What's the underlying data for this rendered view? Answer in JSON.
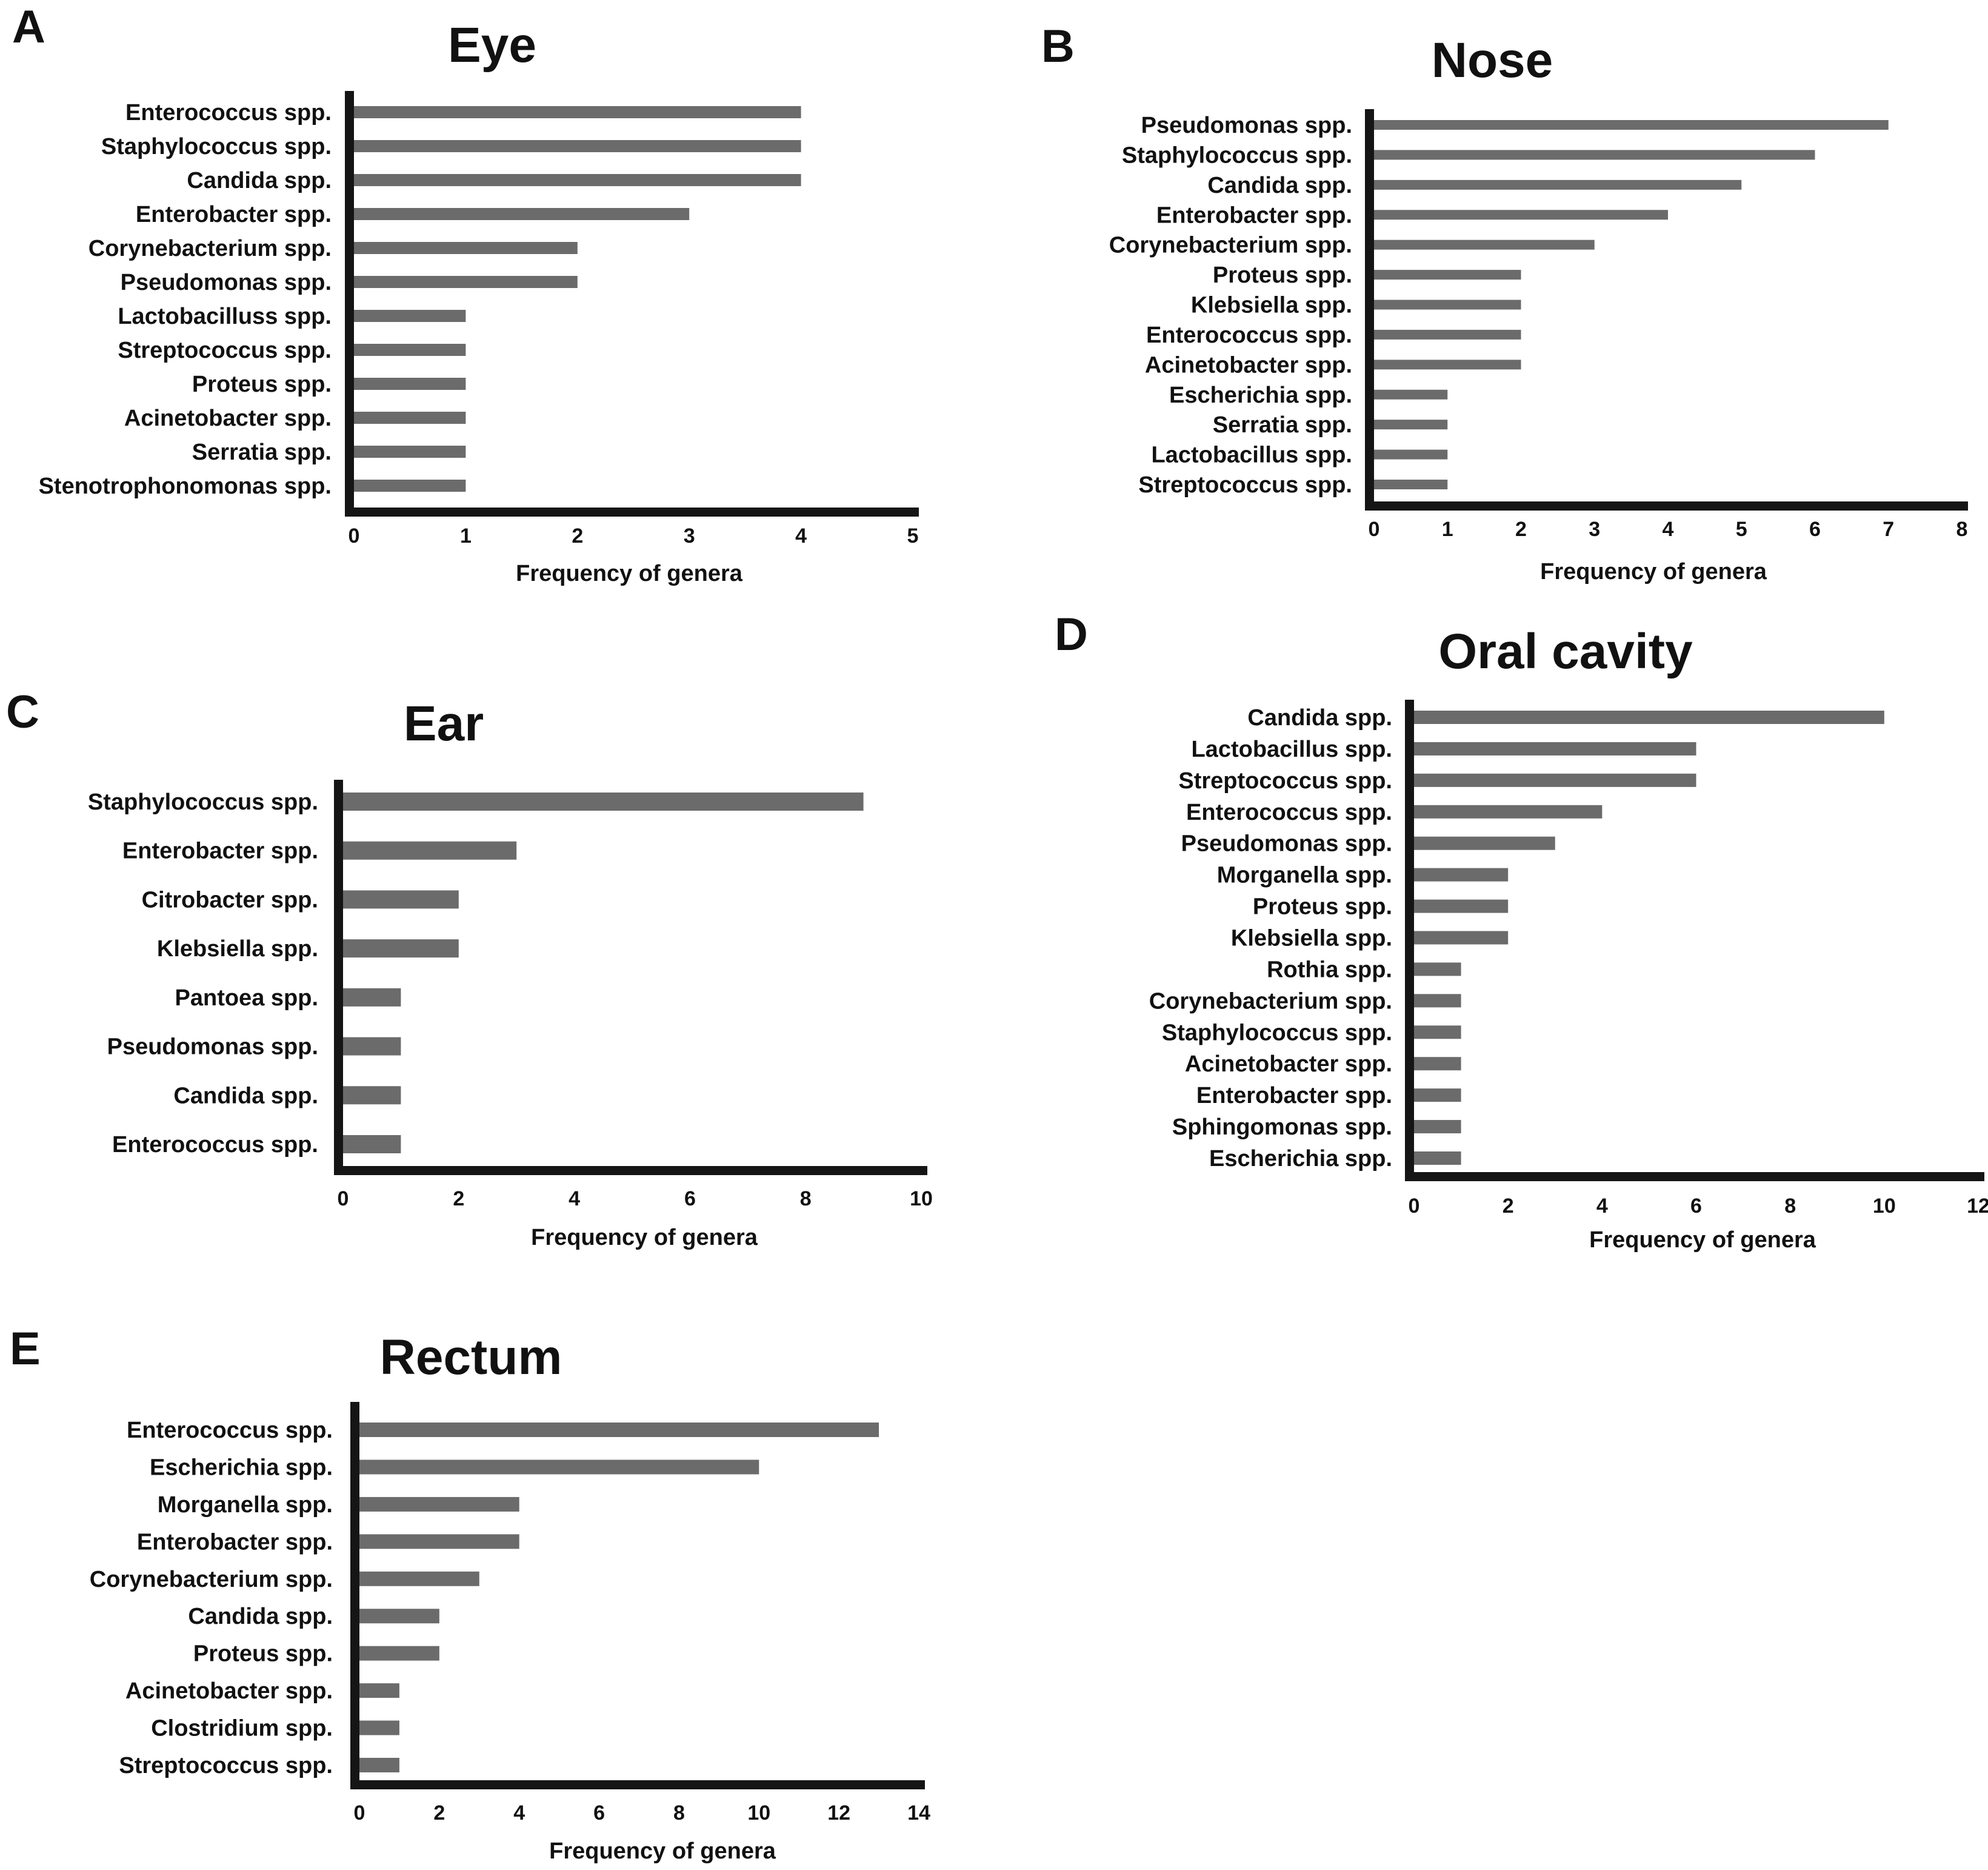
{
  "colors": {
    "bar": "#6b6b6b",
    "axis": "#151515",
    "text": "#111111"
  },
  "chart_data": [
    {
      "panel": "A",
      "type": "bar",
      "orientation": "horizontal",
      "title": "Eye",
      "xlabel": "Frequency of genera",
      "xlim": [
        0,
        5
      ],
      "xticks": [
        0,
        1,
        2,
        3,
        4,
        5
      ],
      "categories": [
        "Enterococcus spp.",
        "Staphylococcus spp.",
        "Candida spp.",
        "Enterobacter spp.",
        "Corynebacterium spp.",
        "Pseudomonas spp.",
        "Lactobacilluss spp.",
        "Streptococcus spp.",
        "Proteus spp.",
        "Acinetobacter spp.",
        "Serratia spp.",
        "Stenotrophonomonas spp."
      ],
      "values": [
        4,
        4,
        4,
        3,
        2,
        2,
        1,
        1,
        1,
        1,
        1,
        1
      ]
    },
    {
      "panel": "B",
      "type": "bar",
      "orientation": "horizontal",
      "title": "Nose",
      "xlabel": "Frequency of genera",
      "xlim": [
        0,
        8
      ],
      "xticks": [
        0,
        1,
        2,
        3,
        4,
        5,
        6,
        7,
        8
      ],
      "categories": [
        "Pseudomonas spp.",
        "Staphylococcus spp.",
        "Candida spp.",
        "Enterobacter spp.",
        "Corynebacterium spp.",
        "Proteus spp.",
        "Klebsiella spp.",
        "Enterococcus spp.",
        "Acinetobacter spp.",
        "Escherichia spp.",
        "Serratia spp.",
        "Lactobacillus spp.",
        "Streptococcus spp."
      ],
      "values": [
        7,
        6,
        5,
        4,
        3,
        2,
        2,
        2,
        2,
        1,
        1,
        1,
        1
      ]
    },
    {
      "panel": "C",
      "type": "bar",
      "orientation": "horizontal",
      "title": "Ear",
      "xlabel": "Frequency of genera",
      "xlim": [
        0,
        10
      ],
      "xticks": [
        0,
        2,
        4,
        6,
        8,
        10
      ],
      "categories": [
        "Staphylococcus spp.",
        "Enterobacter spp.",
        "Citrobacter spp.",
        "Klebsiella spp.",
        "Pantoea spp.",
        "Pseudomonas spp.",
        "Candida spp.",
        "Enterococcus spp."
      ],
      "values": [
        9,
        3,
        2,
        2,
        1,
        1,
        1,
        1
      ]
    },
    {
      "panel": "D",
      "type": "bar",
      "orientation": "horizontal",
      "title": "Oral cavity",
      "xlabel": "Frequency of genera",
      "xlim": [
        0,
        12
      ],
      "xticks": [
        0,
        2,
        4,
        6,
        8,
        10,
        12
      ],
      "categories": [
        "Candida spp.",
        "Lactobacillus spp.",
        "Streptococcus  spp.",
        "Enterococcus spp.",
        "Pseudomonas spp.",
        "Morganella spp.",
        "Proteus spp.",
        "Klebsiella spp.",
        "Rothia spp.",
        "Corynebacterium spp.",
        "Staphylococcus spp.",
        "Acinetobacter spp.",
        "Enterobacter spp.",
        "Sphingomonas spp.",
        "Escherichia spp."
      ],
      "values": [
        10,
        6,
        6,
        4,
        3,
        2,
        2,
        2,
        1,
        1,
        1,
        1,
        1,
        1,
        1
      ]
    },
    {
      "panel": "E",
      "type": "bar",
      "orientation": "horizontal",
      "title": "Rectum",
      "xlabel": "Frequency of genera",
      "xlim": [
        0,
        14
      ],
      "xticks": [
        0,
        2,
        4,
        6,
        8,
        10,
        12,
        14
      ],
      "categories": [
        "Enterococcus spp.",
        "Escherichia spp.",
        "Morganella spp.",
        "Enterobacter spp.",
        "Corynebacterium spp.",
        "Candida spp.",
        "Proteus spp.",
        "Acinetobacter spp.",
        "Clostridium spp.",
        "Streptococcus spp."
      ],
      "values": [
        13,
        10,
        4,
        4,
        3,
        2,
        2,
        1,
        1,
        1
      ]
    }
  ]
}
